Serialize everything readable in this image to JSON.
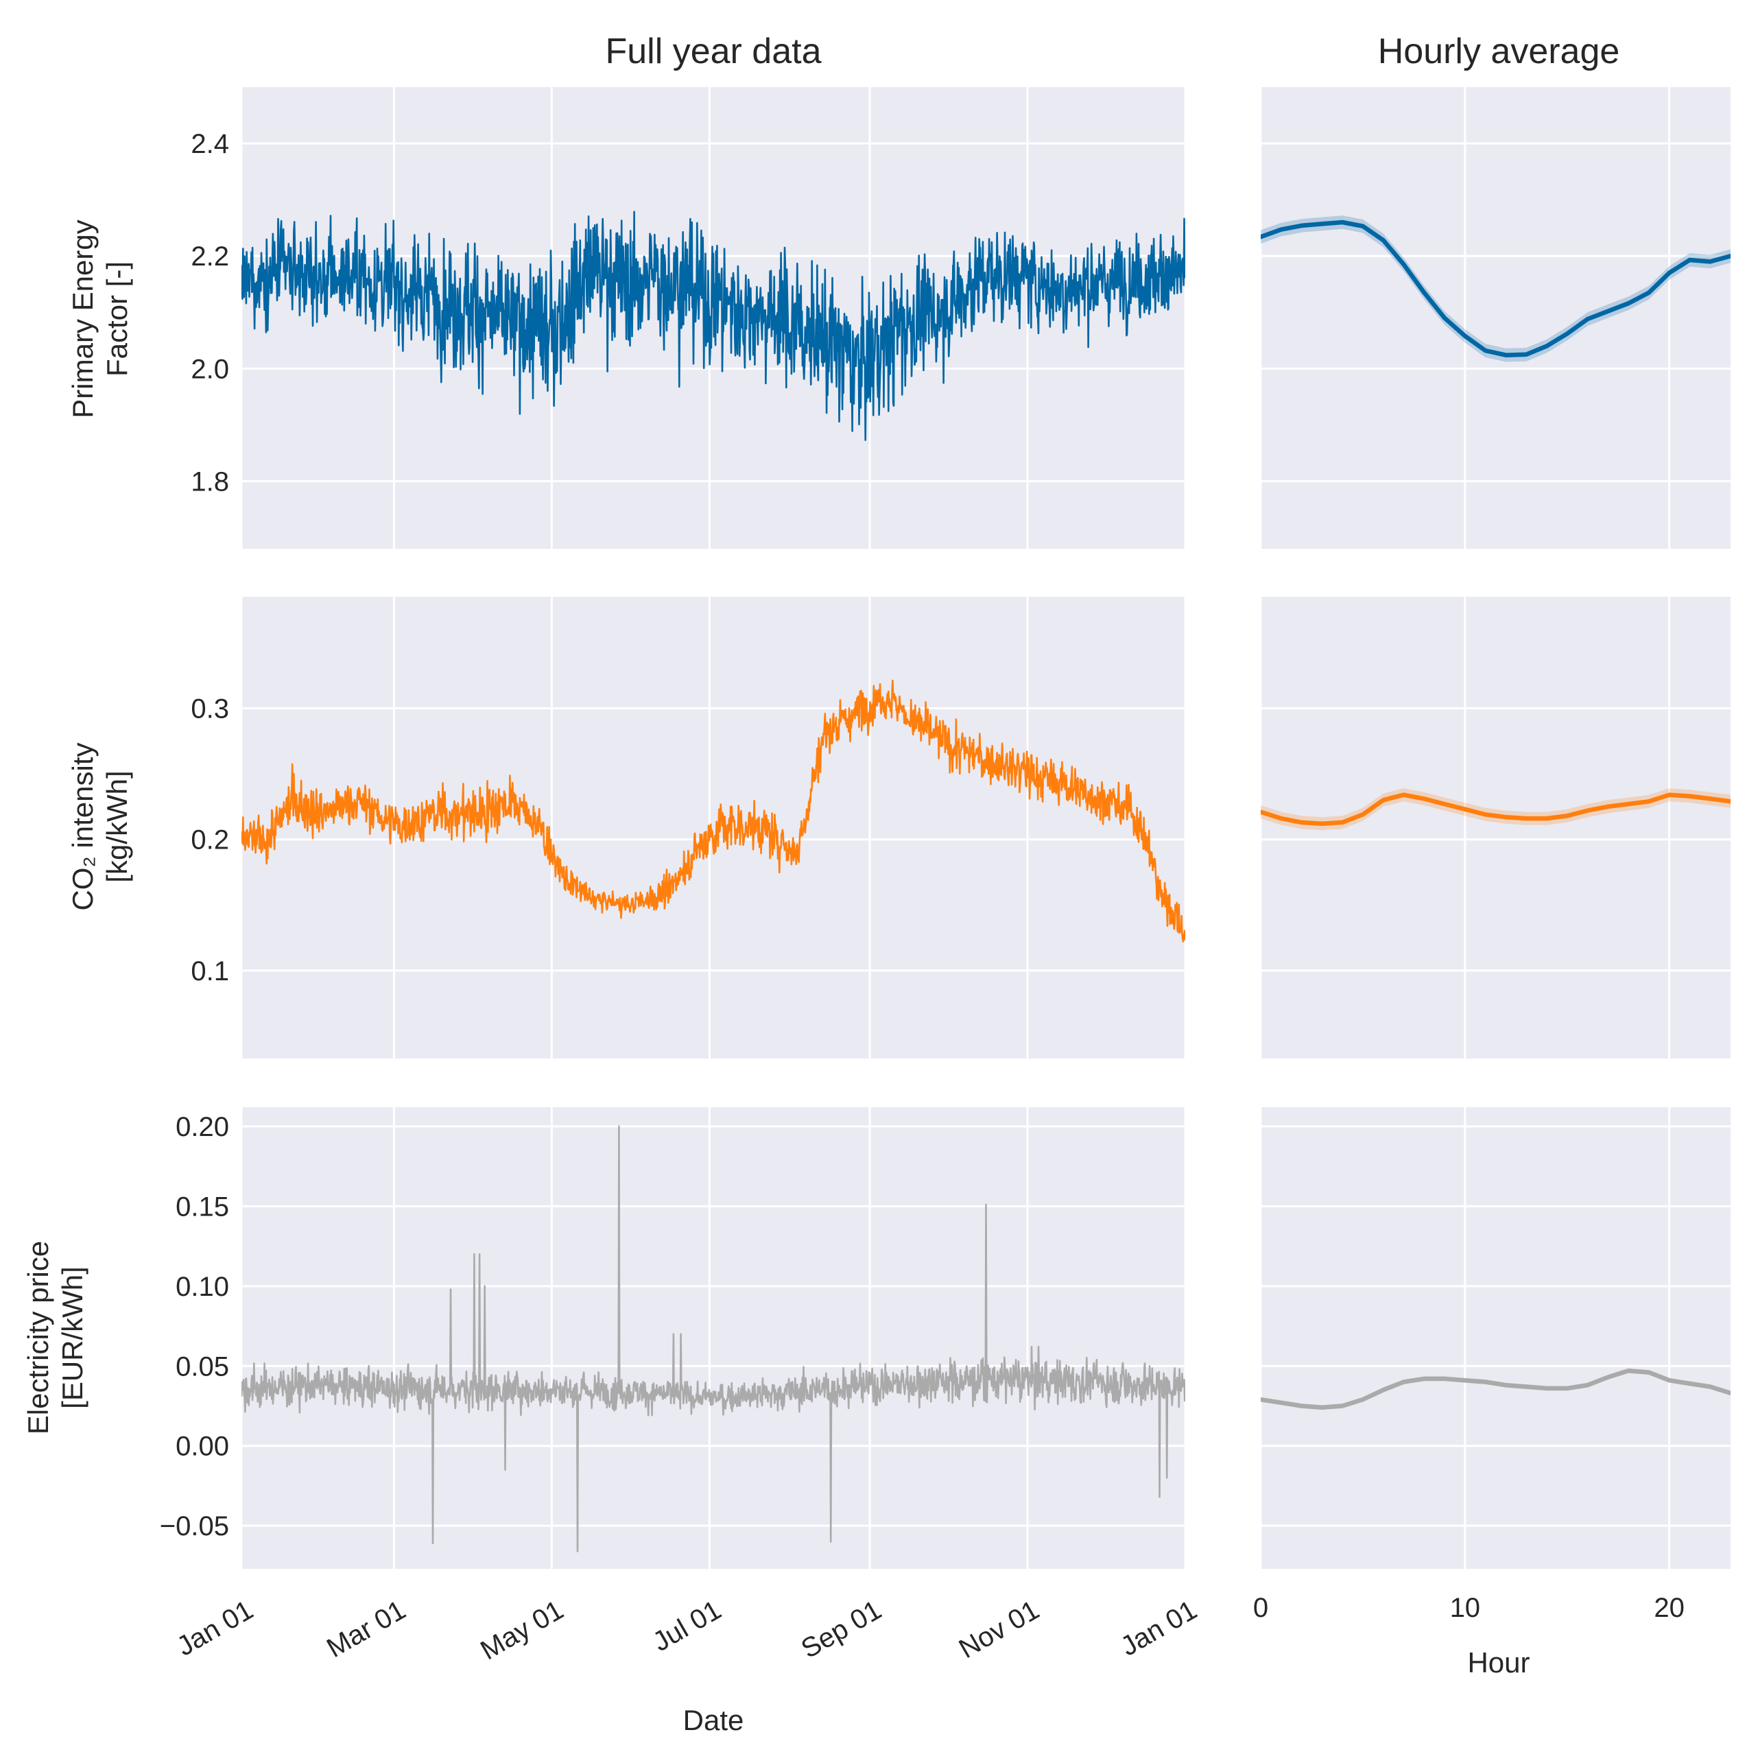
{
  "chart_data": [
    {
      "type": "line",
      "panel": "full-year-primary-energy",
      "title": "Full year data",
      "ylabel_lines": [
        "Primary Energy",
        "Factor [-]"
      ],
      "ylim": [
        1.68,
        2.5
      ],
      "yticks": [
        1.8,
        2.0,
        2.2,
        2.4
      ],
      "ytick_labels": [
        "1.8",
        "2.0",
        "2.2",
        "2.4"
      ],
      "xlim": [
        0,
        365
      ],
      "xticks": [
        0,
        59,
        120,
        181,
        243,
        304,
        365
      ],
      "color": "#0066a4",
      "series": [
        {
          "name": "Primary Energy Factor",
          "x": [
            0,
            15,
            30,
            45,
            60,
            75,
            90,
            105,
            120,
            135,
            150,
            165,
            180,
            195,
            210,
            225,
            240,
            255,
            270,
            285,
            300,
            315,
            330,
            345,
            365
          ],
          "y": [
            2.15,
            2.18,
            2.16,
            2.17,
            2.14,
            2.13,
            2.1,
            2.08,
            2.06,
            2.18,
            2.15,
            2.16,
            2.13,
            2.1,
            2.09,
            2.05,
            2.0,
            2.08,
            2.1,
            2.16,
            2.17,
            2.14,
            2.15,
            2.16,
            2.17
          ],
          "amp": [
            0.13,
            0.13,
            0.14,
            0.16,
            0.16,
            0.18,
            0.2,
            0.2,
            0.22,
            0.21,
            0.2,
            0.21,
            0.2,
            0.2,
            0.21,
            0.21,
            0.22,
            0.21,
            0.16,
            0.15,
            0.14,
            0.13,
            0.13,
            0.13,
            0.14
          ]
        }
      ]
    },
    {
      "type": "line",
      "panel": "hourly-primary-energy",
      "title": "Hourly average",
      "ylim": [
        1.68,
        2.5
      ],
      "yticks": [
        1.8,
        2.0,
        2.2,
        2.4
      ],
      "xlim": [
        0,
        23
      ],
      "xticks": [
        0,
        10,
        20
      ],
      "color": "#0066a4",
      "series": [
        {
          "name": "Primary Energy Factor hourly mean",
          "x": [
            0,
            1,
            2,
            3,
            4,
            5,
            6,
            7,
            8,
            9,
            10,
            11,
            12,
            13,
            14,
            15,
            16,
            17,
            18,
            19,
            20,
            21,
            22,
            23
          ],
          "y": [
            2.234,
            2.247,
            2.254,
            2.257,
            2.26,
            2.253,
            2.228,
            2.185,
            2.135,
            2.09,
            2.058,
            2.032,
            2.024,
            2.025,
            2.04,
            2.062,
            2.088,
            2.102,
            2.116,
            2.135,
            2.17,
            2.193,
            2.19,
            2.2
          ],
          "band": 0.012
        }
      ]
    },
    {
      "type": "line",
      "panel": "full-year-co2",
      "ylabel_lines": [
        "CO₂ intensity",
        "[kg/kWh]"
      ],
      "ylim": [
        0.033,
        0.385
      ],
      "yticks": [
        0.1,
        0.2,
        0.3
      ],
      "ytick_labels": [
        "0.1",
        "0.2",
        "0.3"
      ],
      "xlim": [
        0,
        365
      ],
      "xticks": [
        0,
        59,
        120,
        181,
        243,
        304,
        365
      ],
      "color": "#ff7f0e",
      "series": [
        {
          "name": "CO2 intensity",
          "x": [
            0,
            10,
            20,
            30,
            45,
            60,
            75,
            90,
            105,
            115,
            125,
            135,
            150,
            165,
            175,
            185,
            200,
            215,
            225,
            240,
            250,
            260,
            275,
            290,
            305,
            320,
            335,
            345,
            350,
            355,
            365
          ],
          "y": [
            0.2,
            0.2,
            0.23,
            0.22,
            0.23,
            0.21,
            0.22,
            0.22,
            0.23,
            0.21,
            0.17,
            0.155,
            0.15,
            0.16,
            0.19,
            0.21,
            0.21,
            0.19,
            0.28,
            0.3,
            0.31,
            0.29,
            0.27,
            0.26,
            0.25,
            0.24,
            0.23,
            0.22,
            0.2,
            0.16,
            0.13
          ],
          "amp": [
            0.03,
            0.03,
            0.04,
            0.03,
            0.03,
            0.03,
            0.03,
            0.04,
            0.03,
            0.03,
            0.02,
            0.015,
            0.015,
            0.02,
            0.03,
            0.04,
            0.03,
            0.03,
            0.03,
            0.03,
            0.03,
            0.03,
            0.03,
            0.03,
            0.03,
            0.03,
            0.03,
            0.03,
            0.03,
            0.03,
            0.025
          ]
        }
      ]
    },
    {
      "type": "line",
      "panel": "hourly-co2",
      "ylim": [
        0.033,
        0.385
      ],
      "yticks": [
        0.1,
        0.2,
        0.3
      ],
      "xlim": [
        0,
        23
      ],
      "xticks": [
        0,
        10,
        20
      ],
      "color": "#ff7f0e",
      "series": [
        {
          "name": "CO2 intensity hourly mean",
          "x": [
            0,
            1,
            2,
            3,
            4,
            5,
            6,
            7,
            8,
            9,
            10,
            11,
            12,
            13,
            14,
            15,
            16,
            17,
            18,
            19,
            20,
            21,
            22,
            23
          ],
          "y": [
            0.221,
            0.216,
            0.213,
            0.212,
            0.213,
            0.219,
            0.23,
            0.234,
            0.231,
            0.227,
            0.223,
            0.219,
            0.217,
            0.216,
            0.216,
            0.218,
            0.222,
            0.225,
            0.227,
            0.229,
            0.234,
            0.233,
            0.231,
            0.229
          ],
          "band": 0.005
        }
      ]
    },
    {
      "type": "line",
      "panel": "full-year-price",
      "xlabel": "Date",
      "ylabel_lines": [
        "Electricity price",
        "[EUR/kWh]"
      ],
      "ylim": [
        -0.077,
        0.212
      ],
      "yticks": [
        -0.05,
        0.0,
        0.05,
        0.1,
        0.15,
        0.2
      ],
      "ytick_labels": [
        "−0.05",
        "0.00",
        "0.05",
        "0.10",
        "0.15",
        "0.20"
      ],
      "xlim": [
        0,
        365
      ],
      "xticks": [
        0,
        59,
        120,
        181,
        243,
        304,
        365
      ],
      "xtick_labels": [
        "Jan 01",
        "Mar 01",
        "May 01",
        "Jul 01",
        "Sep 01",
        "Nov 01",
        "Jan 01"
      ],
      "color": "#aaaaaa",
      "series": [
        {
          "name": "Electricity price",
          "x": [
            0,
            30,
            60,
            90,
            120,
            150,
            180,
            210,
            240,
            270,
            300,
            330,
            365
          ],
          "y": [
            0.035,
            0.038,
            0.036,
            0.035,
            0.035,
            0.034,
            0.03,
            0.033,
            0.038,
            0.04,
            0.042,
            0.04,
            0.037
          ],
          "amp": [
            0.022,
            0.022,
            0.022,
            0.022,
            0.02,
            0.018,
            0.015,
            0.018,
            0.022,
            0.024,
            0.024,
            0.024,
            0.022
          ],
          "spikes": [
            {
              "x": 74,
              "y": -0.061
            },
            {
              "x": 81,
              "y": 0.098
            },
            {
              "x": 90,
              "y": 0.12
            },
            {
              "x": 92,
              "y": 0.12
            },
            {
              "x": 94,
              "y": 0.1
            },
            {
              "x": 102,
              "y": -0.015
            },
            {
              "x": 130,
              "y": -0.066
            },
            {
              "x": 146,
              "y": 0.2
            },
            {
              "x": 167,
              "y": 0.07
            },
            {
              "x": 170,
              "y": 0.07
            },
            {
              "x": 228,
              "y": -0.06
            },
            {
              "x": 288,
              "y": 0.151
            },
            {
              "x": 355,
              "y": -0.032
            },
            {
              "x": 358,
              "y": -0.02
            }
          ]
        }
      ]
    },
    {
      "type": "line",
      "panel": "hourly-price",
      "xlabel": "Hour",
      "ylim": [
        -0.077,
        0.212
      ],
      "yticks": [
        -0.05,
        0.0,
        0.05,
        0.1,
        0.15,
        0.2
      ],
      "xlim": [
        0,
        23
      ],
      "xticks": [
        0,
        10,
        20
      ],
      "xtick_labels": [
        "0",
        "10",
        "20"
      ],
      "color": "#aaaaaa",
      "series": [
        {
          "name": "Electricity price hourly mean",
          "x": [
            0,
            1,
            2,
            3,
            4,
            5,
            6,
            7,
            8,
            9,
            10,
            11,
            12,
            13,
            14,
            15,
            16,
            17,
            18,
            19,
            20,
            21,
            22,
            23
          ],
          "y": [
            0.029,
            0.027,
            0.025,
            0.024,
            0.025,
            0.029,
            0.035,
            0.04,
            0.042,
            0.042,
            0.041,
            0.04,
            0.038,
            0.037,
            0.036,
            0.036,
            0.038,
            0.043,
            0.047,
            0.046,
            0.041,
            0.039,
            0.037,
            0.033
          ],
          "band": 0.0015
        }
      ]
    }
  ]
}
